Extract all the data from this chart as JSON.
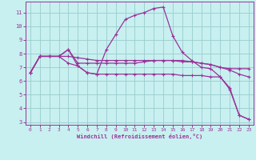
{
  "xlabel": "Windchill (Refroidissement éolien,°C)",
  "bg_color": "#c8f0f0",
  "line_color": "#993399",
  "grid_color": "#99cccc",
  "xlim": [
    -0.5,
    23.5
  ],
  "ylim": [
    2.8,
    11.8
  ],
  "yticks": [
    3,
    4,
    5,
    6,
    7,
    8,
    9,
    10,
    11
  ],
  "xticks": [
    0,
    1,
    2,
    3,
    4,
    5,
    6,
    7,
    8,
    9,
    10,
    11,
    12,
    13,
    14,
    15,
    16,
    17,
    18,
    19,
    20,
    21,
    22,
    23
  ],
  "line1_x": [
    0,
    1,
    2,
    3,
    4,
    5,
    6,
    7,
    8,
    9,
    10,
    11,
    12,
    13,
    14,
    15,
    16,
    17,
    18,
    19,
    20,
    21,
    22,
    23
  ],
  "line1_y": [
    6.6,
    7.8,
    7.8,
    7.8,
    8.3,
    7.1,
    6.6,
    6.5,
    8.3,
    9.4,
    10.5,
    10.8,
    11.0,
    11.3,
    11.4,
    9.3,
    8.1,
    7.5,
    7.0,
    6.9,
    6.3,
    5.4,
    3.5,
    3.2
  ],
  "line2_x": [
    0,
    1,
    2,
    3,
    4,
    5,
    6,
    7,
    8,
    9,
    10,
    11,
    12,
    13,
    14,
    15,
    16,
    17,
    18,
    19,
    20,
    21,
    22,
    23
  ],
  "line2_y": [
    6.6,
    7.8,
    7.8,
    7.8,
    7.8,
    7.7,
    7.6,
    7.5,
    7.5,
    7.5,
    7.5,
    7.5,
    7.5,
    7.5,
    7.5,
    7.5,
    7.5,
    7.4,
    7.3,
    7.2,
    7.0,
    6.9,
    6.9,
    6.9
  ],
  "line3_x": [
    0,
    1,
    2,
    3,
    4,
    5,
    6,
    7,
    8,
    9,
    10,
    11,
    12,
    13,
    14,
    15,
    16,
    17,
    18,
    19,
    20,
    21,
    22,
    23
  ],
  "line3_y": [
    6.6,
    7.8,
    7.8,
    7.8,
    7.3,
    7.1,
    6.6,
    6.5,
    6.5,
    6.5,
    6.5,
    6.5,
    6.5,
    6.5,
    6.5,
    6.5,
    6.4,
    6.4,
    6.4,
    6.3,
    6.3,
    5.5,
    3.5,
    3.2
  ],
  "line4_x": [
    0,
    1,
    2,
    3,
    4,
    5,
    6,
    7,
    8,
    9,
    10,
    11,
    12,
    13,
    14,
    15,
    16,
    17,
    18,
    19,
    20,
    21,
    22,
    23
  ],
  "line4_y": [
    6.6,
    7.8,
    7.8,
    7.8,
    8.3,
    7.3,
    7.3,
    7.3,
    7.3,
    7.3,
    7.3,
    7.3,
    7.4,
    7.5,
    7.5,
    7.5,
    7.4,
    7.4,
    7.3,
    7.2,
    7.0,
    6.8,
    6.5,
    6.3
  ]
}
